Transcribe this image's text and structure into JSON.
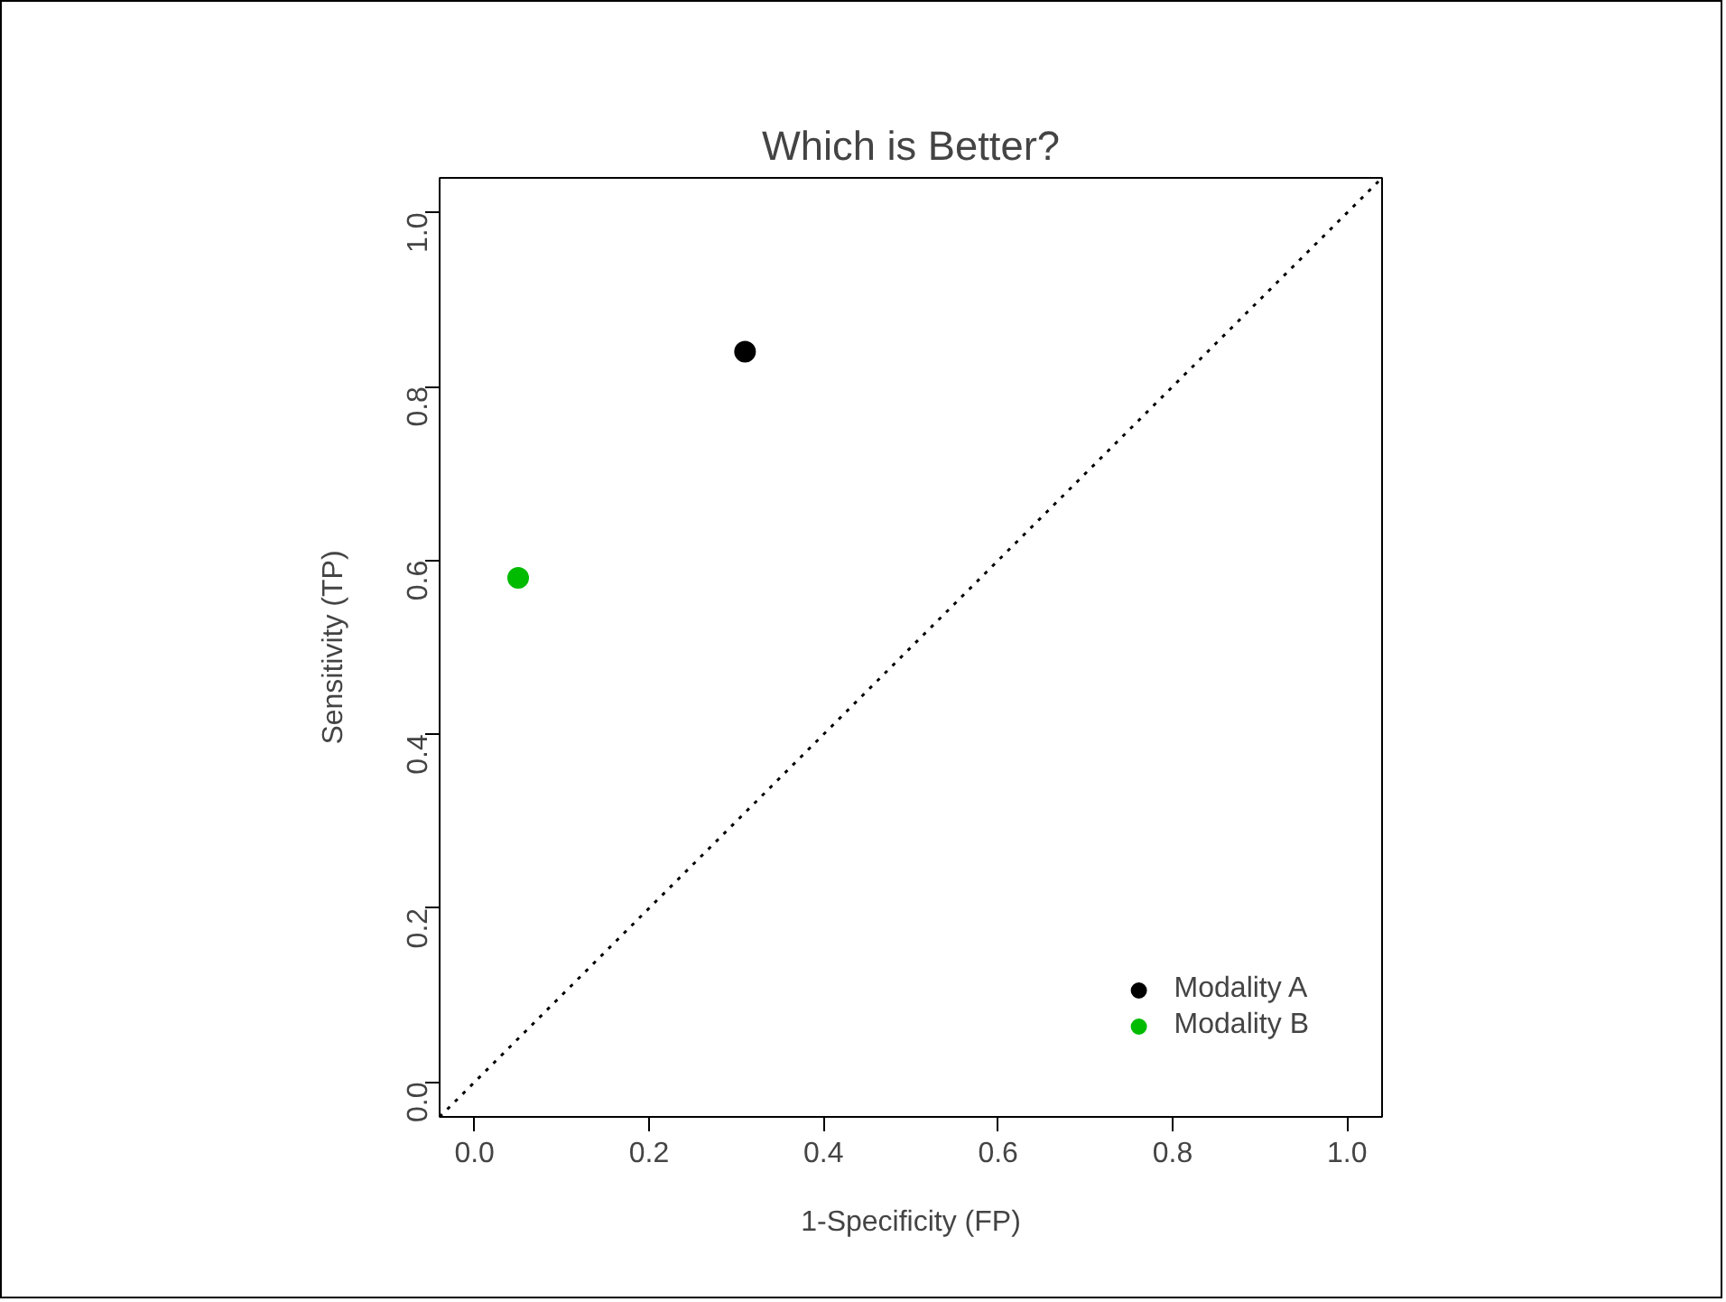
{
  "chart_data": {
    "type": "scatter",
    "title": "Which is Better?",
    "xlabel": "1-Specificity (FP)",
    "ylabel": "Sensitivity (TP)",
    "series": [
      {
        "name": "Modality A",
        "color": "#000000",
        "x": [
          0.31
        ],
        "values": [
          0.84
        ]
      },
      {
        "name": "Modality B",
        "color": "#00bb00",
        "x": [
          0.05
        ],
        "values": [
          0.58
        ]
      },
      {
        "type": "line",
        "color": "#000000",
        "line_style": "dotted",
        "marker": "none",
        "x": [
          -0.04,
          1.04
        ],
        "values": [
          -0.04,
          1.04
        ]
      }
    ],
    "marker": "circle",
    "xlim": [
      -0.04,
      1.04
    ],
    "ylim": [
      -0.04,
      1.04
    ],
    "xticks": [
      {
        "value": 0,
        "label": "0.0"
      },
      0.2,
      0.4,
      0.6,
      0.8,
      {
        "value": 1,
        "label": "1.0"
      }
    ],
    "yticks": [
      {
        "value": 0,
        "label": "0.0"
      },
      0.2,
      0.4,
      0.6,
      0.8,
      {
        "value": 1,
        "label": "1.0"
      }
    ],
    "grid": false,
    "legend": "bottom right"
  }
}
